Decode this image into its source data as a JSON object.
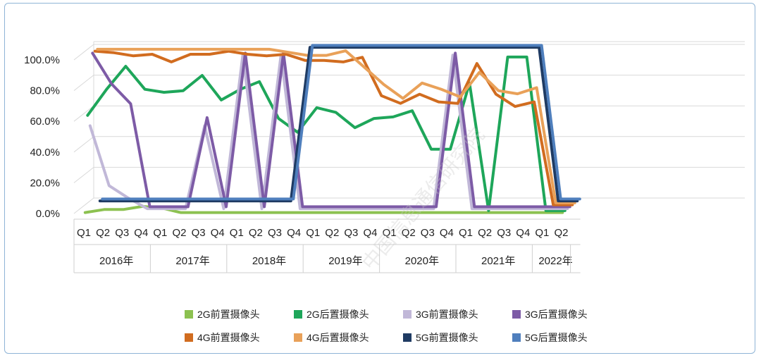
{
  "watermark": "中国信息通信研究院",
  "chart_data": {
    "type": "line",
    "title": "",
    "xlabel": "",
    "ylabel": "",
    "ylim": [
      0,
      100
    ],
    "y_ticks": [
      "0.0%",
      "20.0%",
      "40.0%",
      "60.0%",
      "80.0%",
      "100.0%"
    ],
    "grid": true,
    "legend_position": "bottom",
    "categories": [
      "Q1",
      "Q2",
      "Q3",
      "Q4",
      "Q1",
      "Q2",
      "Q3",
      "Q4",
      "Q1",
      "Q2",
      "Q3",
      "Q4",
      "Q1",
      "Q2",
      "Q3",
      "Q4",
      "Q1",
      "Q2",
      "Q3",
      "Q4",
      "Q1",
      "Q2",
      "Q3",
      "Q4",
      "Q1",
      "Q2"
    ],
    "year_groups": [
      {
        "label": "2016年",
        "span": 4
      },
      {
        "label": "2017年",
        "span": 4
      },
      {
        "label": "2018年",
        "span": 4
      },
      {
        "label": "2019年",
        "span": 4
      },
      {
        "label": "2020年",
        "span": 4
      },
      {
        "label": "2021年",
        "span": 4
      },
      {
        "label": "2022年",
        "span": 2
      }
    ],
    "series": [
      {
        "name": "2G前置摄像头",
        "color": "#8cc150",
        "values": [
          0,
          2,
          2,
          4,
          3,
          0,
          0,
          0,
          0,
          0,
          0,
          0,
          0,
          0,
          0,
          0,
          0,
          0,
          0,
          0,
          0,
          0,
          0,
          0,
          0,
          0
        ]
      },
      {
        "name": "2G后置摄像头",
        "color": "#1ea65a",
        "values": [
          62,
          79,
          94,
          79,
          77,
          78,
          88,
          72,
          79,
          84,
          60,
          51,
          67,
          64,
          54,
          60,
          61,
          65,
          40,
          40,
          83,
          0,
          100,
          100,
          0,
          0
        ]
      },
      {
        "name": "3G前置摄像头",
        "color": "#c1b8d8",
        "values": [
          54,
          15,
          7,
          0,
          0,
          0,
          54,
          0,
          100,
          0,
          100,
          0,
          0,
          0,
          0,
          0,
          0,
          0,
          0,
          100,
          0,
          0,
          0,
          0,
          0,
          0
        ]
      },
      {
        "name": "3G后置摄像头",
        "color": "#7d5ba6",
        "values": [
          100,
          80,
          67,
          0,
          0,
          0,
          58,
          0,
          100,
          0,
          100,
          0,
          0,
          0,
          0,
          0,
          0,
          0,
          0,
          100,
          0,
          0,
          0,
          0,
          0,
          0
        ]
      },
      {
        "name": "4G前置摄像头",
        "color": "#d16c1f",
        "values": [
          100,
          99,
          97,
          98,
          93,
          98,
          98,
          100,
          98,
          97,
          98,
          94,
          94,
          93,
          96,
          71,
          66,
          72,
          67,
          66,
          92,
          72,
          64,
          67,
          0,
          0
        ]
      },
      {
        "name": "4G后置摄像头",
        "color": "#e9a159",
        "values": [
          100,
          100,
          100,
          100,
          100,
          100,
          100,
          100,
          100,
          100,
          98,
          96,
          96,
          99,
          88,
          77,
          68,
          78,
          74,
          69,
          85,
          73,
          71,
          75,
          0,
          0
        ]
      },
      {
        "name": "5G前置摄像头",
        "color": "#1f3b63",
        "values": [
          0,
          0,
          0,
          0,
          0,
          0,
          0,
          0,
          0,
          0,
          0,
          100,
          100,
          100,
          100,
          100,
          100,
          100,
          100,
          100,
          100,
          100,
          100,
          100,
          0,
          0
        ]
      },
      {
        "name": "5G后置摄像头",
        "color": "#4f7fbd",
        "values": [
          0,
          0,
          0,
          0,
          0,
          0,
          0,
          0,
          0,
          0,
          0,
          100,
          100,
          100,
          100,
          100,
          100,
          100,
          100,
          100,
          100,
          100,
          100,
          100,
          0,
          0
        ]
      }
    ]
  }
}
